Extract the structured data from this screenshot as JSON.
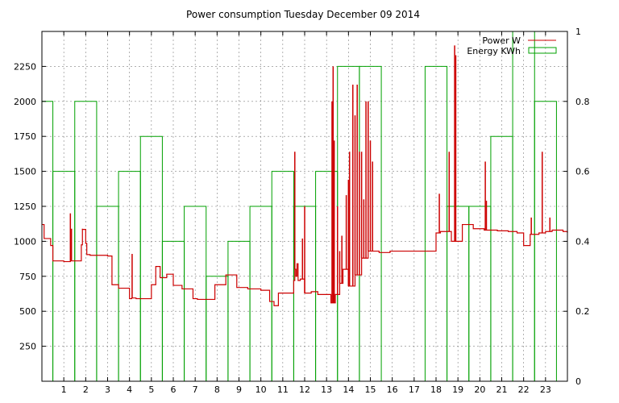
{
  "chart_data": {
    "type": "line",
    "title": "Power consumption Tuesday December 09 2014",
    "xlabel": "",
    "ylabel": "",
    "y2label": "",
    "xlim": [
      0,
      24
    ],
    "ylim": [
      0,
      2500
    ],
    "y2lim": [
      0,
      1
    ],
    "x_ticks": [
      1,
      2,
      3,
      4,
      5,
      6,
      7,
      8,
      9,
      10,
      11,
      12,
      13,
      14,
      15,
      16,
      17,
      18,
      19,
      20,
      21,
      22,
      23
    ],
    "y_ticks": [
      250,
      500,
      750,
      1000,
      1250,
      1500,
      1750,
      2000,
      2250
    ],
    "y2_ticks": [
      {
        "v": 0,
        "label": "0"
      },
      {
        "v": 0.2,
        "label": "0.2"
      },
      {
        "v": 0.4,
        "label": "0.4"
      },
      {
        "v": 0.6,
        "label": "0.6"
      },
      {
        "v": 0.8,
        "label": "0.8"
      },
      {
        "v": 1,
        "label": "1"
      }
    ],
    "grid": true,
    "legend_position": "top-right",
    "colors": {
      "power": "#cc0000",
      "energy": "#00a000",
      "grid": "#808080",
      "axis": "#000000"
    },
    "series": [
      {
        "name": "Power W",
        "axis": "left",
        "style": "steps",
        "x": [
          0,
          0.1,
          0.4,
          0.5,
          1.0,
          1.3,
          1.35,
          1.8,
          1.85,
          2.0,
          2.05,
          2.2,
          3.0,
          3.2,
          3.5,
          4.0,
          4.1,
          4.2,
          4.3,
          4.9,
          5.0,
          5.2,
          5.4,
          5.7,
          6.0,
          6.4,
          6.9,
          7.1,
          7.6,
          7.9,
          8.4,
          8.9,
          9.4,
          10.0,
          10.4,
          10.6,
          10.8,
          11.5,
          11.55,
          11.6,
          11.65,
          11.7,
          11.8,
          12.0,
          12.3,
          12.6,
          13.2,
          13.4,
          13.6,
          13.75,
          14.0,
          14.3,
          14.6,
          14.9,
          15.4,
          15.9,
          16.8,
          17.5,
          18.0,
          18.2,
          18.7,
          19.2,
          19.7,
          20.0,
          20.2,
          20.8,
          21.3,
          21.7,
          22.0,
          22.3,
          22.7,
          23.0,
          23.3,
          23.8,
          24.0
        ],
        "y": [
          1120,
          1020,
          970,
          860,
          855,
          860,
          860,
          975,
          1085,
          985,
          905,
          900,
          895,
          690,
          665,
          590,
          595,
          595,
          590,
          590,
          690,
          820,
          740,
          765,
          685,
          660,
          590,
          585,
          585,
          690,
          760,
          670,
          660,
          650,
          570,
          540,
          630,
          720,
          800,
          750,
          840,
          720,
          730,
          630,
          640,
          620,
          560,
          620,
          700,
          800,
          680,
          760,
          880,
          930,
          920,
          930,
          930,
          930,
          1060,
          1070,
          1000,
          1120,
          1090,
          1090,
          1080,
          1075,
          1070,
          1060,
          970,
          1050,
          1060,
          1070,
          1080,
          1070,
          1060
        ],
        "spikes": [
          {
            "x": 1.3,
            "y": 1200
          },
          {
            "x": 1.35,
            "y": 1090
          },
          {
            "x": 1.85,
            "y": 1090
          },
          {
            "x": 4.12,
            "y": 910
          },
          {
            "x": 11.55,
            "y": 1640
          },
          {
            "x": 11.9,
            "y": 1020
          },
          {
            "x": 12.0,
            "y": 1250
          },
          {
            "x": 13.0,
            "y": 620
          },
          {
            "x": 13.25,
            "y": 2000
          },
          {
            "x": 13.3,
            "y": 2250
          },
          {
            "x": 13.35,
            "y": 1720
          },
          {
            "x": 13.5,
            "y": 1250
          },
          {
            "x": 13.6,
            "y": 930
          },
          {
            "x": 13.7,
            "y": 1040
          },
          {
            "x": 13.9,
            "y": 1330
          },
          {
            "x": 14.0,
            "y": 1440
          },
          {
            "x": 14.05,
            "y": 1640
          },
          {
            "x": 14.2,
            "y": 2120
          },
          {
            "x": 14.3,
            "y": 1900
          },
          {
            "x": 14.4,
            "y": 2120
          },
          {
            "x": 14.5,
            "y": 1640
          },
          {
            "x": 14.6,
            "y": 1640
          },
          {
            "x": 14.7,
            "y": 1300
          },
          {
            "x": 14.8,
            "y": 2000
          },
          {
            "x": 14.9,
            "y": 2000
          },
          {
            "x": 15.0,
            "y": 1720
          },
          {
            "x": 15.1,
            "y": 1570
          },
          {
            "x": 18.15,
            "y": 1340
          },
          {
            "x": 18.6,
            "y": 1640
          },
          {
            "x": 18.85,
            "y": 2400
          },
          {
            "x": 18.9,
            "y": 2330
          },
          {
            "x": 20.25,
            "y": 1570
          },
          {
            "x": 20.3,
            "y": 1290
          },
          {
            "x": 22.35,
            "y": 1170
          },
          {
            "x": 22.85,
            "y": 1640
          },
          {
            "x": 23.2,
            "y": 1170
          }
        ]
      },
      {
        "name": "Energy KWh",
        "axis": "right",
        "style": "histogram",
        "values": [
          0.8,
          0.6,
          0.8,
          0.5,
          0.6,
          0.7,
          0.4,
          0.5,
          0.3,
          0.4,
          0.5,
          0.6,
          0.5,
          0.6,
          0.9,
          0.9,
          0,
          0,
          0.9,
          0.5,
          0.5,
          0.7,
          1.0,
          0.8
        ]
      }
    ]
  }
}
